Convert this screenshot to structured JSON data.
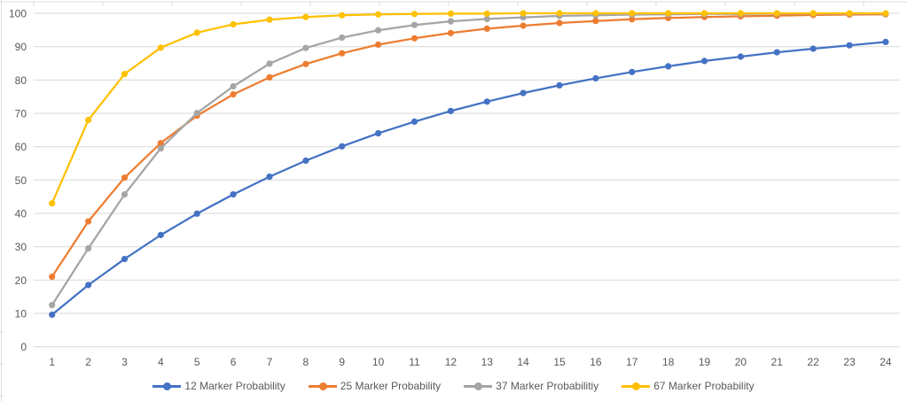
{
  "chart_data": {
    "type": "line",
    "title": "",
    "xlabel": "",
    "ylabel": "",
    "x": [
      1,
      2,
      3,
      4,
      5,
      6,
      7,
      8,
      9,
      10,
      11,
      12,
      13,
      14,
      15,
      16,
      17,
      18,
      19,
      20,
      21,
      22,
      23,
      24
    ],
    "ylim": [
      0,
      100
    ],
    "y_ticks": [
      0,
      10,
      20,
      30,
      40,
      50,
      60,
      70,
      80,
      90,
      100
    ],
    "grid": "horizontal",
    "legend_position": "bottom",
    "marker": "circle",
    "series": [
      {
        "name": "12 Marker Probability",
        "color": "#4472C4",
        "values": [
          9.6,
          18.5,
          26.3,
          33.5,
          39.9,
          45.7,
          51.0,
          55.8,
          60.1,
          64.0,
          67.5,
          70.7,
          73.5,
          76.1,
          78.4,
          80.5,
          82.4,
          84.1,
          85.7,
          87.0,
          88.3,
          89.4,
          90.4,
          91.4
        ]
      },
      {
        "name": "25 Marker Probability",
        "color": "#ED7D31",
        "values": [
          21.0,
          37.6,
          50.7,
          61.1,
          69.3,
          75.7,
          80.8,
          84.8,
          88.0,
          90.6,
          92.5,
          94.1,
          95.4,
          96.3,
          97.1,
          97.7,
          98.2,
          98.6,
          98.9,
          99.1,
          99.3,
          99.5,
          99.6,
          99.7
        ]
      },
      {
        "name": "37 Marker Probabilitiy",
        "color": "#A5A5A5",
        "values": [
          12.5,
          29.5,
          45.7,
          59.5,
          70.1,
          78.1,
          84.9,
          89.6,
          92.7,
          94.9,
          96.5,
          97.6,
          98.3,
          98.8,
          99.2,
          99.4,
          99.6,
          99.7,
          99.8,
          99.8,
          99.9,
          99.9,
          99.9,
          99.9
        ]
      },
      {
        "name": "67 Marker Probability",
        "color": "#FFC000",
        "values": [
          43.0,
          68.0,
          81.8,
          89.7,
          94.2,
          96.7,
          98.1,
          98.9,
          99.4,
          99.7,
          99.8,
          99.9,
          99.9,
          100,
          100,
          100,
          100,
          100,
          100,
          100,
          100,
          100,
          100,
          100
        ]
      }
    ]
  },
  "colors": {
    "background": "#FFFFFF",
    "gridline": "#D9D9D9",
    "axis_label": "#595959",
    "cell_border": "#DCDCDC"
  }
}
